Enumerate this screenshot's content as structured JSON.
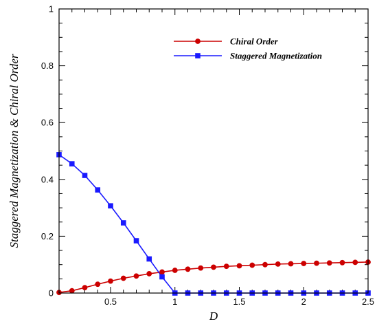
{
  "chart_data": {
    "type": "line",
    "title": "",
    "xlabel": "D",
    "ylabel": "Staggered Magnetization & Chiral Order",
    "xlim": [
      0.1,
      2.5
    ],
    "ylim": [
      0,
      1
    ],
    "x_ticks": [
      {
        "value": 0.5,
        "label": "0.5"
      },
      {
        "value": 1,
        "label": "1"
      },
      {
        "value": 1.5,
        "label": "1.5"
      },
      {
        "value": 2,
        "label": "2"
      },
      {
        "value": 2.5,
        "label": "2.5"
      }
    ],
    "y_ticks": [
      {
        "value": 0,
        "label": "0"
      },
      {
        "value": 0.2,
        "label": "0.2"
      },
      {
        "value": 0.4,
        "label": "0.4"
      },
      {
        "value": 0.6,
        "label": "0.6"
      },
      {
        "value": 0.8,
        "label": "0.8"
      },
      {
        "value": 1,
        "label": "1"
      }
    ],
    "x_minor_step": 0.1,
    "y_minor_step": 0.05,
    "grid": false,
    "legend_position": "top-right",
    "series": [
      {
        "name": "Chiral Order",
        "color": "#cc0000",
        "marker": "circle",
        "x": [
          0.1,
          0.2,
          0.3,
          0.4,
          0.5,
          0.6,
          0.7,
          0.8,
          0.9,
          1.0,
          1.1,
          1.2,
          1.3,
          1.4,
          1.5,
          1.6,
          1.7,
          1.8,
          1.9,
          2.0,
          2.1,
          2.2,
          2.3,
          2.4,
          2.5
        ],
        "y": [
          0.002,
          0.008,
          0.019,
          0.031,
          0.042,
          0.052,
          0.06,
          0.068,
          0.074,
          0.08,
          0.084,
          0.088,
          0.091,
          0.094,
          0.096,
          0.098,
          0.1,
          0.102,
          0.103,
          0.104,
          0.105,
          0.106,
          0.107,
          0.108,
          0.109
        ]
      },
      {
        "name": "Staggered Magnetization",
        "color": "#1a1aff",
        "marker": "square",
        "x": [
          0.1,
          0.2,
          0.3,
          0.4,
          0.5,
          0.6,
          0.7,
          0.8,
          0.9,
          1.0,
          1.1,
          1.2,
          1.3,
          1.4,
          1.5,
          1.6,
          1.7,
          1.8,
          1.9,
          2.0,
          2.1,
          2.2,
          2.3,
          2.4,
          2.5
        ],
        "y": [
          0.487,
          0.455,
          0.414,
          0.363,
          0.307,
          0.247,
          0.184,
          0.12,
          0.057,
          0.0,
          0.0,
          0.0,
          0.0,
          0.0,
          0.0,
          0.0,
          0.0,
          0.0,
          0.0,
          0.0,
          0.0,
          0.0,
          0.0,
          0.0,
          0.0
        ]
      }
    ]
  }
}
